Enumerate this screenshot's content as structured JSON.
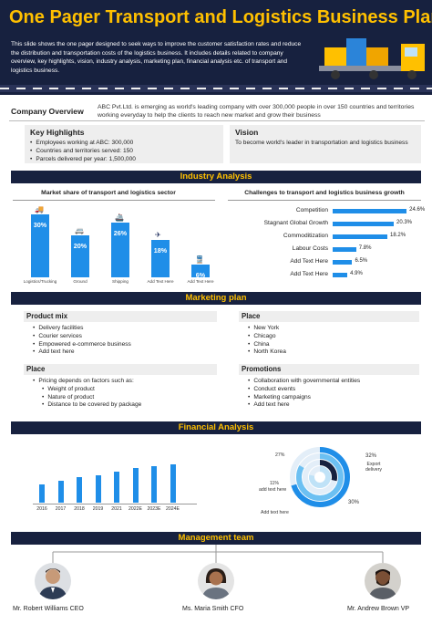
{
  "header": {
    "title": "One Pager Transport and Logistics Business Plan",
    "description": "This slide shows the one pager designed to seek ways to improve the customer satisfaction rates and reduce the distribution and transportation costs of the logistics business. It includes details related to company overview, key highlights, vision, industry analysis, marketing plan, financial analysis etc. of transport and logistics business."
  },
  "company_overview": {
    "label": "Company Overview",
    "text": "ABC Pvt.Ltd. is emerging as world's leading company with over 300,000 people in over 150 countries and territories working everyday to help the clients to reach new market and grow their business"
  },
  "key_highlights": {
    "title": "Key Highlights",
    "items": [
      "Employees working at ABC: 300,000",
      "Countries and territories served: 150",
      "Parcels delivered per year: 1,500,000"
    ]
  },
  "vision": {
    "title": "Vision",
    "text": "To become world's leader in transportation and logistics business"
  },
  "industry_analysis": {
    "band": "Industry Analysis",
    "market_share_title": "Market share of transport and logistics sector",
    "challenges_title": "Challenges to transport and logistics business growth"
  },
  "chart_data": [
    {
      "type": "bar",
      "title": "Market share of transport and logistics sector",
      "categories": [
        "Logistics/Trucking",
        "Ground",
        "Shipping",
        "Add Text Here",
        "Add Text Here"
      ],
      "values": [
        30,
        20,
        26,
        18,
        6
      ],
      "value_labels": [
        "30%",
        "20%",
        "26%",
        "18%",
        "6%"
      ],
      "icons": [
        "truck-icon",
        "van-icon",
        "ship-icon",
        "plane-icon",
        "train-icon"
      ]
    },
    {
      "type": "bar",
      "orientation": "horizontal",
      "title": "Challenges to transport and logistics business growth",
      "categories": [
        "Competition",
        "Stagnant Global Growth",
        "Commoditization",
        "Labour Costs",
        "Add Text Here",
        "Add Text Here"
      ],
      "values": [
        24.6,
        20.3,
        18.2,
        7.8,
        6.5,
        4.9
      ],
      "value_labels": [
        "24.6%",
        "20.3%",
        "18.2%",
        "7.8%",
        "6.5%",
        "4.9%"
      ]
    },
    {
      "type": "bar",
      "title": "",
      "categories": [
        "2016",
        "2017",
        "2018",
        "2019",
        "2021",
        "2022E",
        "2023E",
        "2024E"
      ],
      "values": [
        5,
        6,
        7,
        7.5,
        8.5,
        9.5,
        10,
        10.5
      ]
    },
    {
      "type": "pie",
      "series_labels": [
        "27%",
        "32%",
        "11%",
        "30%"
      ],
      "annotations": [
        "Export delivery",
        "add text here",
        "Add text here"
      ],
      "values": [
        27,
        32,
        11,
        30
      ]
    }
  ],
  "marketing_plan": {
    "band": "Marketing plan",
    "product_mix": {
      "title": "Product mix",
      "items": [
        "Delivery facilities",
        "Courier services",
        "Empowered e-commerce business",
        "Add text here"
      ]
    },
    "place_right": {
      "title": "Place",
      "items": [
        "New York",
        "Chicago",
        "China",
        "North Korea"
      ]
    },
    "place_left": {
      "title": "Place",
      "items": [
        "Pricing depends on factors such as:"
      ],
      "sub_items": [
        "Weight of product",
        "Nature of product",
        "Distance to be covered by package"
      ]
    },
    "promotions": {
      "title": "Promotions",
      "items": [
        "Collaboration with governmental entities",
        "Conduct events",
        "Marketing campaigns",
        "Add text here"
      ]
    }
  },
  "financial_analysis": {
    "band": "Financial Analysis",
    "pie_labels": {
      "p27": "27%",
      "p32": "32%",
      "export": "Export delivery",
      "p11": "11%",
      "add1": "add text here",
      "add2": "Add text here",
      "p30": "30%"
    }
  },
  "management_team": {
    "band": "Management team",
    "people": [
      {
        "name": "Mr. Robert Williams CEO"
      },
      {
        "name": "Ms. Maria Smith CFO"
      },
      {
        "name": "Mr. Andrew Brown VP"
      }
    ]
  },
  "colors": {
    "navy": "#17213f",
    "gold": "#ffc000",
    "accent_blue": "#1f8ee8",
    "box_gray": "#eeeeee"
  }
}
